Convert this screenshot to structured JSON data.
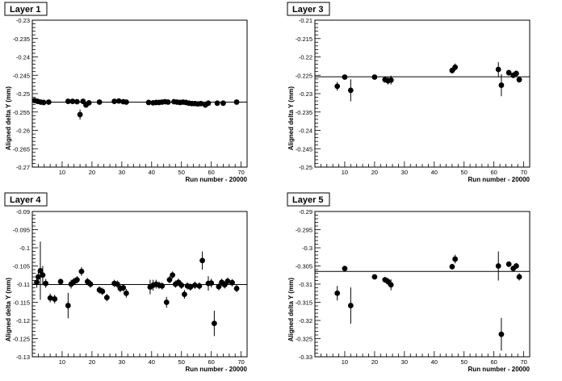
{
  "chart_data": [
    {
      "type": "scatter",
      "title": "Layer 1",
      "xlabel": "Run number - 20000",
      "ylabel": "Aligned delta Y (mm)",
      "xlim": [
        0,
        72
      ],
      "ylim": [
        -0.27,
        -0.23
      ],
      "yticks": [
        "-0.23",
        "-0.235",
        "-0.24",
        "-0.245",
        "-0.25",
        "-0.255",
        "-0.26",
        "-0.265",
        "-0.27"
      ],
      "yticks_values": [
        -0.23,
        -0.235,
        -0.24,
        -0.245,
        -0.25,
        -0.255,
        -0.26,
        -0.265,
        -0.27
      ],
      "xticks": [
        "10",
        "20",
        "30",
        "40",
        "50",
        "60",
        "70"
      ],
      "xticks_values": [
        10,
        20,
        30,
        40,
        50,
        60,
        70
      ],
      "reference_line": -0.2523,
      "points": [
        [
          0.8,
          -0.2519,
          0.0004
        ],
        [
          1.8,
          -0.2521,
          0.0004
        ],
        [
          2.8,
          -0.2523,
          0.0004
        ],
        [
          3.8,
          -0.2524,
          0.0004
        ],
        [
          5.5,
          -0.2523,
          0.0004
        ],
        [
          12.0,
          -0.2521,
          0.0004
        ],
        [
          13.5,
          -0.2521,
          0.0004
        ],
        [
          15.0,
          -0.2522,
          0.0004
        ],
        [
          16.0,
          -0.2557,
          0.0014
        ],
        [
          17.0,
          -0.2521,
          0.0004
        ],
        [
          18.0,
          -0.2531,
          0.0005
        ],
        [
          19.0,
          -0.2525,
          0.0004
        ],
        [
          22.5,
          -0.2523,
          0.0004
        ],
        [
          27.5,
          -0.2521,
          0.0004
        ],
        [
          29.0,
          -0.252,
          0.0004
        ],
        [
          30.5,
          -0.2522,
          0.0004
        ],
        [
          31.5,
          -0.2523,
          0.0004
        ],
        [
          39.0,
          -0.2524,
          0.0004
        ],
        [
          40.5,
          -0.2525,
          0.0004
        ],
        [
          41.5,
          -0.2524,
          0.0004
        ],
        [
          42.5,
          -0.2524,
          0.0004
        ],
        [
          43.5,
          -0.2523,
          0.0004
        ],
        [
          44.5,
          -0.2522,
          0.0004
        ],
        [
          45.5,
          -0.2523,
          0.0004
        ],
        [
          47.5,
          -0.2522,
          0.0004
        ],
        [
          48.5,
          -0.2523,
          0.0004
        ],
        [
          49.5,
          -0.2524,
          0.0004
        ],
        [
          50.5,
          -0.2523,
          0.0004
        ],
        [
          51.5,
          -0.2524,
          0.0004
        ],
        [
          52.5,
          -0.2526,
          0.0004
        ],
        [
          53.5,
          -0.2527,
          0.0004
        ],
        [
          54.5,
          -0.2527,
          0.0004
        ],
        [
          55.5,
          -0.2528,
          0.0004
        ],
        [
          56.5,
          -0.2527,
          0.0004
        ],
        [
          58.0,
          -0.2531,
          0.0004
        ],
        [
          59.0,
          -0.2526,
          0.0004
        ],
        [
          62.0,
          -0.2526,
          0.0004
        ],
        [
          64.0,
          -0.2526,
          0.0004
        ],
        [
          68.5,
          -0.2523,
          0.0004
        ]
      ]
    },
    {
      "type": "scatter",
      "title": "Layer 3",
      "xlabel": "Run number - 20000",
      "ylabel": "Aligned delta Y (mm)",
      "xlim": [
        0,
        72
      ],
      "ylim": [
        -0.25,
        -0.21
      ],
      "yticks": [
        "-0.21",
        "-0.215",
        "-0.22",
        "-0.225",
        "-0.23",
        "-0.235",
        "-0.24",
        "-0.245",
        "-0.25"
      ],
      "yticks_values": [
        -0.21,
        -0.215,
        -0.22,
        -0.225,
        -0.23,
        -0.235,
        -0.24,
        -0.245,
        -0.25
      ],
      "xticks": [
        "10",
        "20",
        "30",
        "40",
        "50",
        "60",
        "70"
      ],
      "xticks_values": [
        10,
        20,
        30,
        40,
        50,
        60,
        70
      ],
      "reference_line": -0.2254,
      "points": [
        [
          7.5,
          -0.228,
          0.0012
        ],
        [
          10.0,
          -0.2255,
          0.0005
        ],
        [
          12.0,
          -0.2291,
          0.003
        ],
        [
          20.0,
          -0.2255,
          0.0005
        ],
        [
          23.5,
          -0.2262,
          0.0008
        ],
        [
          24.5,
          -0.2265,
          0.001
        ],
        [
          25.5,
          -0.2263,
          0.0012
        ],
        [
          46.0,
          -0.2237,
          0.0008
        ],
        [
          47.0,
          -0.2228,
          0.001
        ],
        [
          61.5,
          -0.2234,
          0.002
        ],
        [
          62.5,
          -0.2277,
          0.003
        ],
        [
          65.0,
          -0.2243,
          0.0008
        ],
        [
          66.5,
          -0.225,
          0.0008
        ],
        [
          67.5,
          -0.2245,
          0.0008
        ],
        [
          68.5,
          -0.2262,
          0.0008
        ]
      ]
    },
    {
      "type": "scatter",
      "title": "Layer 4",
      "xlabel": "Run number - 20000",
      "ylabel": "Aligned delta Y (mm)",
      "xlim": [
        0,
        72
      ],
      "ylim": [
        -0.13,
        -0.09
      ],
      "yticks": [
        "-0.09",
        "-0.095",
        "-0.1",
        "-0.105",
        "-0.11",
        "-0.115",
        "-0.12",
        "-0.125",
        "-0.13"
      ],
      "yticks_values": [
        -0.09,
        -0.095,
        -0.1,
        -0.105,
        -0.11,
        -0.115,
        -0.12,
        -0.125,
        -0.13
      ],
      "xticks": [
        "10",
        "20",
        "30",
        "40",
        "50",
        "60",
        "70"
      ],
      "xticks_values": [
        10,
        20,
        30,
        40,
        50,
        60,
        70
      ],
      "reference_line": -0.1101,
      "points": [
        [
          1.5,
          -0.1095,
          0.0015
        ],
        [
          2.0,
          -0.108,
          0.002
        ],
        [
          2.7,
          -0.1063,
          0.008
        ],
        [
          3.5,
          -0.1075,
          0.0025
        ],
        [
          4.5,
          -0.1098,
          0.0012
        ],
        [
          6.0,
          -0.1138,
          0.0012
        ],
        [
          7.5,
          -0.1141,
          0.0012
        ],
        [
          9.5,
          -0.1093,
          0.0008
        ],
        [
          12.0,
          -0.1159,
          0.0035
        ],
        [
          13.0,
          -0.11,
          0.0012
        ],
        [
          14.0,
          -0.1093,
          0.001
        ],
        [
          15.0,
          -0.1088,
          0.001
        ],
        [
          16.5,
          -0.1065,
          0.0012
        ],
        [
          18.5,
          -0.1093,
          0.001
        ],
        [
          19.5,
          -0.11,
          0.001
        ],
        [
          22.5,
          -0.1116,
          0.001
        ],
        [
          23.5,
          -0.112,
          0.001
        ],
        [
          25.0,
          -0.1137,
          0.001
        ],
        [
          27.5,
          -0.1098,
          0.001
        ],
        [
          28.5,
          -0.11,
          0.001
        ],
        [
          29.5,
          -0.1112,
          0.001
        ],
        [
          30.5,
          -0.111,
          0.001
        ],
        [
          31.5,
          -0.1125,
          0.0012
        ],
        [
          39.5,
          -0.1108,
          0.002
        ],
        [
          40.5,
          -0.1103,
          0.0015
        ],
        [
          41.5,
          -0.11,
          0.0012
        ],
        [
          42.5,
          -0.1103,
          0.001
        ],
        [
          43.5,
          -0.1105,
          0.001
        ],
        [
          45.0,
          -0.115,
          0.0015
        ],
        [
          46.0,
          -0.1088,
          0.001
        ],
        [
          47.0,
          -0.1075,
          0.001
        ],
        [
          48.0,
          -0.11,
          0.001
        ],
        [
          49.0,
          -0.1095,
          0.001
        ],
        [
          50.0,
          -0.1103,
          0.001
        ],
        [
          51.0,
          -0.1128,
          0.0012
        ],
        [
          52.0,
          -0.1105,
          0.001
        ],
        [
          53.0,
          -0.1108,
          0.001
        ],
        [
          54.5,
          -0.1103,
          0.001
        ],
        [
          56.0,
          -0.1105,
          0.001
        ],
        [
          57.0,
          -0.1035,
          0.0025
        ],
        [
          59.0,
          -0.1098,
          0.002
        ],
        [
          60.0,
          -0.1097,
          0.0012
        ],
        [
          61.0,
          -0.1208,
          0.0035
        ],
        [
          62.5,
          -0.1107,
          0.001
        ],
        [
          63.5,
          -0.1095,
          0.001
        ],
        [
          64.5,
          -0.1102,
          0.001
        ],
        [
          65.5,
          -0.1092,
          0.001
        ],
        [
          67.0,
          -0.1096,
          0.001
        ],
        [
          68.5,
          -0.1112,
          0.001
        ]
      ]
    },
    {
      "type": "scatter",
      "title": "Layer 5",
      "xlabel": "Run number - 20000",
      "ylabel": "Aligned delta Y (mm)",
      "xlim": [
        0,
        72
      ],
      "ylim": [
        -0.33,
        -0.29
      ],
      "yticks": [
        "-0.29",
        "-0.295",
        "-0.3",
        "-0.305",
        "-0.31",
        "-0.315",
        "-0.32",
        "-0.325",
        "-0.33"
      ],
      "yticks_values": [
        -0.29,
        -0.295,
        -0.3,
        -0.305,
        -0.31,
        -0.315,
        -0.32,
        -0.325,
        -0.33
      ],
      "xticks": [
        "10",
        "20",
        "30",
        "40",
        "50",
        "60",
        "70"
      ],
      "xticks_values": [
        10,
        20,
        30,
        40,
        50,
        60,
        70
      ],
      "reference_line": -0.3065,
      "points": [
        [
          7.5,
          -0.3125,
          0.002
        ],
        [
          10.0,
          -0.3057,
          0.0005
        ],
        [
          12.0,
          -0.3159,
          0.005
        ],
        [
          20.0,
          -0.308,
          0.0005
        ],
        [
          23.5,
          -0.3088,
          0.0008
        ],
        [
          24.5,
          -0.3093,
          0.001
        ],
        [
          25.5,
          -0.3102,
          0.0015
        ],
        [
          46.0,
          -0.3052,
          0.0008
        ],
        [
          47.0,
          -0.3031,
          0.0012
        ],
        [
          61.5,
          -0.305,
          0.004
        ],
        [
          62.5,
          -0.3238,
          0.0045
        ],
        [
          65.0,
          -0.3045,
          0.0008
        ],
        [
          66.5,
          -0.3057,
          0.0008
        ],
        [
          67.5,
          -0.305,
          0.0008
        ],
        [
          68.5,
          -0.308,
          0.001
        ]
      ]
    }
  ]
}
